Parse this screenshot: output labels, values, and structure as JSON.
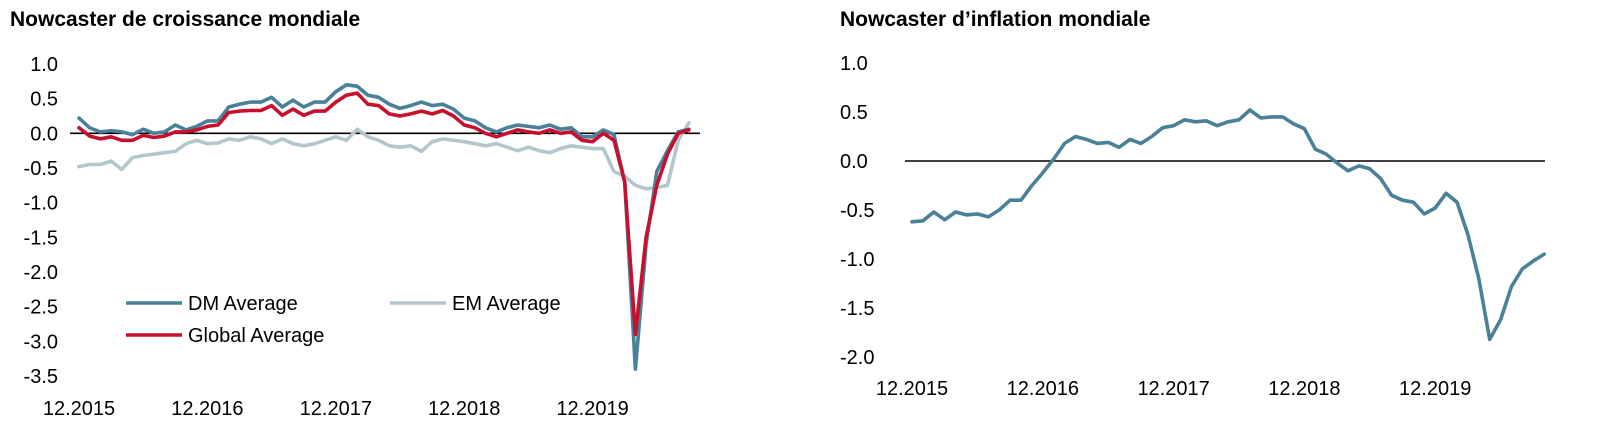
{
  "colors": {
    "dm": "#4a8199",
    "em": "#b4c6cd",
    "global": "#c8102e",
    "zero_line": "#000000"
  },
  "chart_data": [
    {
      "type": "line",
      "title": "Nowcaster de croissance mondiale",
      "xlabel": "",
      "ylabel": "",
      "x_ticks": [
        "12.2015",
        "12.2016",
        "12.2017",
        "12.2018",
        "12.2019"
      ],
      "x_start": "12.2015",
      "y_ticks": [
        "1.0",
        "0.5",
        "0.0",
        "-0.5",
        "-1.0",
        "-1.5",
        "-2.0",
        "-2.5",
        "-3.0",
        "-3.5"
      ],
      "ylim": [
        -3.5,
        1.0
      ],
      "zero_line": true,
      "legend": {
        "position": "lower-left"
      },
      "series": [
        {
          "name": "DM Average",
          "color_key": "dm",
          "values": [
            0.22,
            0.08,
            0.02,
            0.04,
            0.02,
            -0.02,
            0.06,
            0.0,
            0.02,
            0.12,
            0.05,
            0.1,
            0.18,
            0.18,
            0.38,
            0.42,
            0.45,
            0.45,
            0.52,
            0.38,
            0.48,
            0.38,
            0.45,
            0.45,
            0.6,
            0.7,
            0.68,
            0.55,
            0.52,
            0.42,
            0.36,
            0.4,
            0.45,
            0.4,
            0.42,
            0.35,
            0.22,
            0.18,
            0.08,
            0.02,
            0.08,
            0.12,
            0.1,
            0.08,
            0.12,
            0.06,
            0.08,
            -0.05,
            -0.05,
            0.05,
            -0.02,
            -0.7,
            -3.4,
            -1.6,
            -0.55,
            -0.25,
            0.02,
            0.06
          ]
        },
        {
          "name": "EM Average",
          "color_key": "em",
          "values": [
            -0.48,
            -0.45,
            -0.45,
            -0.4,
            -0.52,
            -0.35,
            -0.32,
            -0.3,
            -0.28,
            -0.26,
            -0.15,
            -0.1,
            -0.15,
            -0.14,
            -0.08,
            -0.1,
            -0.05,
            -0.08,
            -0.15,
            -0.08,
            -0.15,
            -0.18,
            -0.15,
            -0.1,
            -0.05,
            -0.1,
            0.06,
            -0.05,
            -0.1,
            -0.18,
            -0.2,
            -0.18,
            -0.26,
            -0.12,
            -0.08,
            -0.1,
            -0.12,
            -0.15,
            -0.18,
            -0.15,
            -0.2,
            -0.25,
            -0.2,
            -0.25,
            -0.28,
            -0.22,
            -0.18,
            -0.2,
            -0.22,
            -0.22,
            -0.55,
            -0.62,
            -0.75,
            -0.8,
            -0.78,
            -0.75,
            -0.1,
            0.15
          ]
        },
        {
          "name": "Global Average",
          "color_key": "global",
          "values": [
            0.08,
            -0.04,
            -0.08,
            -0.05,
            -0.1,
            -0.1,
            -0.03,
            -0.06,
            -0.04,
            0.02,
            0.02,
            0.05,
            0.1,
            0.12,
            0.3,
            0.32,
            0.33,
            0.33,
            0.4,
            0.26,
            0.35,
            0.26,
            0.32,
            0.32,
            0.45,
            0.55,
            0.58,
            0.42,
            0.4,
            0.28,
            0.25,
            0.28,
            0.32,
            0.28,
            0.33,
            0.25,
            0.12,
            0.08,
            0.0,
            -0.05,
            0.0,
            0.05,
            0.02,
            0.0,
            0.05,
            0.0,
            0.02,
            -0.1,
            -0.12,
            0.0,
            -0.1,
            -0.7,
            -2.9,
            -1.5,
            -0.75,
            -0.3,
            0.0,
            0.05
          ]
        }
      ]
    },
    {
      "type": "line",
      "title": "Nowcaster d’inflation mondiale",
      "xlabel": "",
      "ylabel": "",
      "x_ticks": [
        "12.2015",
        "12.2016",
        "12.2017",
        "12.2018",
        "12.2019"
      ],
      "x_start": "12.2015",
      "y_ticks": [
        "1.0",
        "0.5",
        "0.0",
        "-0.5",
        "-1.0",
        "-1.5",
        "-2.0"
      ],
      "ylim": [
        -2.0,
        1.0
      ],
      "zero_line": true,
      "series": [
        {
          "color_key": "dm",
          "values": [
            -0.62,
            -0.61,
            -0.52,
            -0.6,
            -0.52,
            -0.55,
            -0.54,
            -0.57,
            -0.5,
            -0.4,
            -0.4,
            -0.25,
            -0.12,
            0.02,
            0.18,
            0.25,
            0.22,
            0.18,
            0.19,
            0.14,
            0.22,
            0.18,
            0.25,
            0.34,
            0.36,
            0.42,
            0.4,
            0.41,
            0.36,
            0.4,
            0.42,
            0.52,
            0.44,
            0.45,
            0.45,
            0.38,
            0.33,
            0.12,
            0.07,
            -0.02,
            -0.1,
            -0.05,
            -0.08,
            -0.18,
            -0.35,
            -0.4,
            -0.42,
            -0.54,
            -0.48,
            -0.33,
            -0.42,
            -0.75,
            -1.2,
            -1.82,
            -1.62,
            -1.28,
            -1.1,
            -1.02,
            -0.95
          ]
        }
      ]
    }
  ]
}
